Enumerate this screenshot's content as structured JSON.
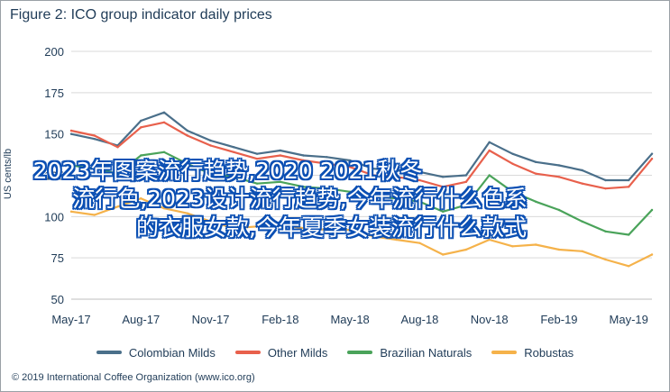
{
  "title": "Figure 2: ICO group indicator daily prices",
  "footer": "© 2019 International Coffee Organization (www.ico.org)",
  "overlay_lines": [
    "2023年图案流行趋势,2020 2021秋冬",
    "流行色,2023设计流行趋势,今年流行什么色系",
    "的衣服女款,今年夏季女装流行什么款式"
  ],
  "chart_data": {
    "type": "line",
    "title": "Figure 2: ICO group indicator daily prices",
    "xlabel": "",
    "ylabel": "US cents/lb",
    "ylim": [
      50,
      200
    ],
    "yticks": [
      50,
      75,
      100,
      125,
      150,
      175,
      200
    ],
    "xticks": [
      "May-17",
      "Aug-17",
      "Nov-17",
      "Feb-18",
      "May-18",
      "Aug-18",
      "Nov-18",
      "Feb-19",
      "May-19"
    ],
    "grid": true,
    "legend_position": "bottom",
    "x": [
      "May-17",
      "Jun-17",
      "Jul-17",
      "Aug-17",
      "Sep-17",
      "Oct-17",
      "Nov-17",
      "Dec-17",
      "Jan-18",
      "Feb-18",
      "Mar-18",
      "Apr-18",
      "May-18",
      "Jun-18",
      "Jul-18",
      "Aug-18",
      "Sep-18",
      "Oct-18",
      "Nov-18",
      "Dec-18",
      "Jan-19",
      "Feb-19",
      "Mar-19",
      "Apr-19",
      "May-19",
      "Jun-19"
    ],
    "series": [
      {
        "name": "Colombian Milds",
        "color": "#4a6f8a",
        "values": [
          150,
          147,
          143,
          158,
          163,
          152,
          146,
          142,
          138,
          140,
          137,
          136,
          134,
          129,
          128,
          127,
          124,
          125,
          145,
          138,
          133,
          131,
          128,
          122,
          122,
          138
        ]
      },
      {
        "name": "Other Milds",
        "color": "#e8604c",
        "values": [
          152,
          149,
          142,
          154,
          157,
          149,
          143,
          139,
          135,
          137,
          134,
          132,
          130,
          125,
          124,
          122,
          118,
          121,
          140,
          132,
          126,
          124,
          120,
          117,
          118,
          135
        ]
      },
      {
        "name": "Brazilian Naturals",
        "color": "#4aa35a",
        "values": [
          131,
          129,
          126,
          137,
          139,
          132,
          126,
          124,
          120,
          121,
          118,
          117,
          115,
          112,
          111,
          109,
          103,
          107,
          125,
          115,
          109,
          104,
          97,
          91,
          89,
          104
        ]
      },
      {
        "name": "Robustas",
        "color": "#f5b24a",
        "values": [
          103,
          101,
          106,
          111,
          105,
          102,
          97,
          93,
          94,
          95,
          93,
          92,
          92,
          88,
          86,
          84,
          77,
          80,
          86,
          82,
          83,
          80,
          79,
          74,
          70,
          77
        ]
      }
    ]
  }
}
